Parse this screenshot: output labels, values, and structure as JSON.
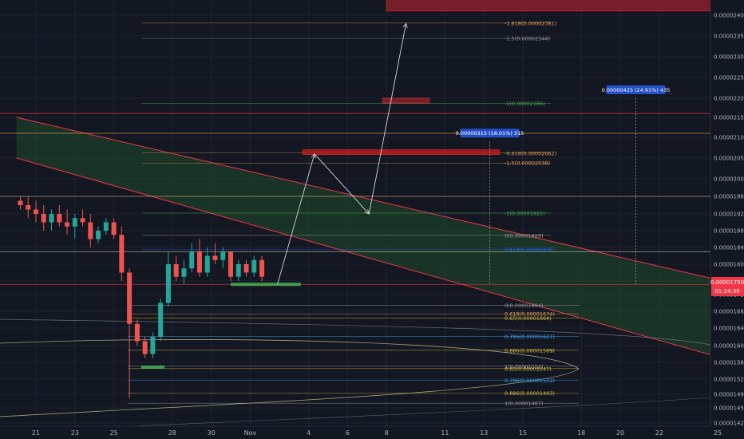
{
  "chart_data": {
    "type": "candlestick",
    "title": "",
    "price_scale": {
      "min": 1.41e-05,
      "max": 2.43e-05,
      "labels": [
        "0.00002400",
        "0.00002350",
        "0.00002300",
        "0.00002250",
        "0.00002200",
        "0.00002150",
        "0.00002100",
        "0.00002050",
        "0.00002000",
        "0.00001960",
        "0.00001920",
        "0.00001880",
        "0.00001840",
        "0.00001800",
        "0.00001760",
        "0.00001720",
        "0.00001680",
        "0.00001640",
        "0.00001600",
        "0.00001560",
        "0.00001525",
        "0.00001490",
        "0.00001455",
        "0.00001421"
      ],
      "label_values": [
        2.4e-05,
        2.35e-05,
        2.3e-05,
        2.25e-05,
        2.2e-05,
        2.15e-05,
        2.1e-05,
        2.05e-05,
        2e-05,
        1.96e-05,
        1.92e-05,
        1.88e-05,
        1.84e-05,
        1.8e-05,
        1.76e-05,
        1.72e-05,
        1.68e-05,
        1.64e-05,
        1.6e-05,
        1.56e-05,
        1.525e-05,
        1.49e-05,
        1.455e-05,
        1.421e-05
      ]
    },
    "current_price": {
      "label": "0.00001750",
      "countdown": "01:24:36",
      "value": 1.75e-05,
      "color": "#f23645"
    },
    "time_axis": {
      "labels": [
        "21",
        "23",
        "25",
        "28",
        "30",
        "Nov",
        "4",
        "6",
        "8",
        "11",
        "13",
        "15",
        "18",
        "20",
        "22",
        "25"
      ],
      "label_days": [
        21,
        23,
        25,
        28,
        30,
        32,
        35,
        37,
        39,
        42,
        44,
        46,
        49,
        51,
        53,
        56
      ]
    },
    "candles": [
      {
        "d": 20.2,
        "o": 1.95e-05,
        "h": 1.96e-05,
        "l": 1.93e-05,
        "c": 1.94e-05
      },
      {
        "d": 20.6,
        "o": 1.94e-05,
        "h": 1.96e-05,
        "l": 1.91e-05,
        "c": 1.93e-05
      },
      {
        "d": 21.0,
        "o": 1.93e-05,
        "h": 1.95e-05,
        "l": 1.9e-05,
        "c": 1.92e-05
      },
      {
        "d": 21.4,
        "o": 1.92e-05,
        "h": 1.94e-05,
        "l": 1.88e-05,
        "c": 1.9e-05
      },
      {
        "d": 21.8,
        "o": 1.9e-05,
        "h": 1.93e-05,
        "l": 1.88e-05,
        "c": 1.92e-05
      },
      {
        "d": 22.2,
        "o": 1.92e-05,
        "h": 1.94e-05,
        "l": 1.89e-05,
        "c": 1.9e-05
      },
      {
        "d": 22.6,
        "o": 1.9e-05,
        "h": 1.93e-05,
        "l": 1.87e-05,
        "c": 1.89e-05
      },
      {
        "d": 23.0,
        "o": 1.89e-05,
        "h": 1.92e-05,
        "l": 1.86e-05,
        "c": 1.91e-05
      },
      {
        "d": 23.4,
        "o": 1.91e-05,
        "h": 1.93e-05,
        "l": 1.89e-05,
        "c": 1.9e-05
      },
      {
        "d": 23.8,
        "o": 1.9e-05,
        "h": 1.92e-05,
        "l": 1.84e-05,
        "c": 1.86e-05
      },
      {
        "d": 24.2,
        "o": 1.86e-05,
        "h": 1.89e-05,
        "l": 1.85e-05,
        "c": 1.88e-05
      },
      {
        "d": 24.6,
        "o": 1.88e-05,
        "h": 1.91e-05,
        "l": 1.87e-05,
        "c": 1.9e-05
      },
      {
        "d": 25.0,
        "o": 1.9e-05,
        "h": 1.91e-05,
        "l": 1.86e-05,
        "c": 1.87e-05
      },
      {
        "d": 25.4,
        "o": 1.87e-05,
        "h": 1.89e-05,
        "l": 1.76e-05,
        "c": 1.78e-05
      },
      {
        "d": 25.8,
        "o": 1.78e-05,
        "h": 1.79e-05,
        "l": 1.48e-05,
        "c": 1.65e-05
      },
      {
        "d": 26.2,
        "o": 1.65e-05,
        "h": 1.66e-05,
        "l": 1.6e-05,
        "c": 1.61e-05
      },
      {
        "d": 26.6,
        "o": 1.61e-05,
        "h": 1.62e-05,
        "l": 1.57e-05,
        "c": 1.58e-05
      },
      {
        "d": 27.0,
        "o": 1.58e-05,
        "h": 1.63e-05,
        "l": 1.57e-05,
        "c": 1.62e-05
      },
      {
        "d": 27.4,
        "o": 1.62e-05,
        "h": 1.71e-05,
        "l": 1.61e-05,
        "c": 1.7e-05
      },
      {
        "d": 27.8,
        "o": 1.7e-05,
        "h": 1.83e-05,
        "l": 1.69e-05,
        "c": 1.8e-05
      },
      {
        "d": 28.2,
        "o": 1.8e-05,
        "h": 1.82e-05,
        "l": 1.76e-05,
        "c": 1.77e-05
      },
      {
        "d": 28.6,
        "o": 1.77e-05,
        "h": 1.81e-05,
        "l": 1.75e-05,
        "c": 1.79e-05
      },
      {
        "d": 29.0,
        "o": 1.79e-05,
        "h": 1.85e-05,
        "l": 1.78e-05,
        "c": 1.83e-05
      },
      {
        "d": 29.4,
        "o": 1.83e-05,
        "h": 1.86e-05,
        "l": 1.77e-05,
        "c": 1.78e-05
      },
      {
        "d": 29.8,
        "o": 1.78e-05,
        "h": 1.84e-05,
        "l": 1.77e-05,
        "c": 1.82e-05
      },
      {
        "d": 30.2,
        "o": 1.82e-05,
        "h": 1.85e-05,
        "l": 1.8e-05,
        "c": 1.81e-05
      },
      {
        "d": 30.6,
        "o": 1.81e-05,
        "h": 1.84e-05,
        "l": 1.79e-05,
        "c": 1.83e-05
      },
      {
        "d": 31.0,
        "o": 1.83e-05,
        "h": 1.83e-05,
        "l": 1.76e-05,
        "c": 1.77e-05
      },
      {
        "d": 31.4,
        "o": 1.77e-05,
        "h": 1.81e-05,
        "l": 1.76e-05,
        "c": 1.8e-05
      },
      {
        "d": 31.8,
        "o": 1.8e-05,
        "h": 1.81e-05,
        "l": 1.77e-05,
        "c": 1.78e-05
      },
      {
        "d": 32.2,
        "o": 1.78e-05,
        "h": 1.82e-05,
        "l": 1.77e-05,
        "c": 1.81e-05
      },
      {
        "d": 32.6,
        "o": 1.81e-05,
        "h": 1.82e-05,
        "l": 1.76e-05,
        "c": 1.77e-05
      }
    ],
    "zones": [
      {
        "name": "target-zone-top",
        "d1": 39,
        "d2": 56,
        "p1": 2.45e-05,
        "p2": 2.41e-05,
        "color": "#8b1e2d"
      },
      {
        "name": "target-zone-upper",
        "d1": 38.8,
        "d2": 41.2,
        "p1": 2.2e-05,
        "p2": 2.19e-05,
        "color": "#8b1e2d"
      },
      {
        "name": "target-zone-middle",
        "d1": 34.7,
        "d2": 44.8,
        "p1": 2.07e-05,
        "p2": 2.06e-05,
        "color": "#b71c1c"
      }
    ],
    "support_marks": [
      {
        "d1": 31.0,
        "d2": 34.6,
        "p": 1.75e-05
      },
      {
        "d1": 26.4,
        "d2": 27.6,
        "p": 1.55e-05
      }
    ],
    "channel": {
      "upper": {
        "d1": 20,
        "p1": 2.15e-05,
        "d2": 57,
        "p2": 1.75e-05
      },
      "lower": {
        "d1": 20,
        "p1": 2.05e-05,
        "d2": 57,
        "p2": 1.56e-05
      }
    },
    "horizontal_lines": [
      {
        "p": 2.16e-05,
        "color": "#f23645"
      },
      {
        "p": 2.11e-05,
        "color": "#f0a35b"
      },
      {
        "p": 1.96e-05,
        "color": "#c8b47a"
      },
      {
        "p": 1.83e-05,
        "color": "#c8c8b0"
      },
      {
        "p": 1.75e-05,
        "color": "#f23645"
      }
    ],
    "fib_levels": [
      {
        "label": "-1.618(0.00002381)",
        "p": 2.381e-05,
        "color": "#f0a35b"
      },
      {
        "label": "-1.5(0.00002344)",
        "p": 2.344e-05,
        "color": "#9e9e9e"
      },
      {
        "label": "-1(0.00002186)",
        "p": 2.186e-05,
        "color": "#4caf50"
      },
      {
        "label": "-0.618(0.00002062)",
        "p": 2.062e-05,
        "color": "#f0a35b"
      },
      {
        "label": "-1.5(0.00002038)",
        "p": 2.038e-05,
        "color": "#f0a35b"
      },
      {
        "label": "-1(0.00001922)",
        "p": 1.922e-05,
        "color": "#4caf50"
      },
      {
        "label": "0(0.00001869)",
        "p": 1.869e-05,
        "color": "#9e9e9e"
      },
      {
        "label": "0.618(0.00001835)",
        "p": 1.835e-05,
        "color": "#2962ff"
      },
      {
        "label": "0(0.00001694)",
        "p": 1.694e-05,
        "color": "#9e9e9e"
      },
      {
        "label": "0.618(0.00001674)",
        "p": 1.674e-05,
        "color": "#f0a35b"
      },
      {
        "label": "0.65(0.00001664)",
        "p": 1.664e-05,
        "color": "#e0c040"
      },
      {
        "label": "0.786(0.00001621)",
        "p": 1.621e-05,
        "color": "#42a5f5"
      },
      {
        "label": "0.886(0.00001589)",
        "p": 1.589e-05,
        "color": "#e0c040"
      },
      {
        "label": "1(0.00001552)",
        "p": 1.552e-05,
        "color": "#9e9e9e"
      },
      {
        "label": "0.65(0.00001547)",
        "p": 1.547e-05,
        "color": "#e0c040"
      },
      {
        "label": "0.786(0.00001522)",
        "p": 1.522e-05,
        "color": "#42a5f5"
      },
      {
        "label": "0.886(0.00001493)",
        "p": 1.493e-05,
        "color": "#e0c040"
      },
      {
        "label": "1(0.00001467)",
        "p": 1.467e-05,
        "color": "#9e9e9e"
      }
    ],
    "measure_boxes": [
      {
        "label": "0.00000315 (18.01%) 315",
        "d": 44.3,
        "p": 2.09e-05
      },
      {
        "label": "0.00000435 (24.91%) 435",
        "d": 51.8,
        "p": 2.2e-05
      }
    ],
    "projection_path": [
      {
        "d": 33.4,
        "p": 1.75e-05
      },
      {
        "d": 35.3,
        "p": 2.06e-05
      },
      {
        "d": 38.1,
        "p": 1.92e-05
      },
      {
        "d": 40.0,
        "p": 2.38e-05
      }
    ]
  }
}
